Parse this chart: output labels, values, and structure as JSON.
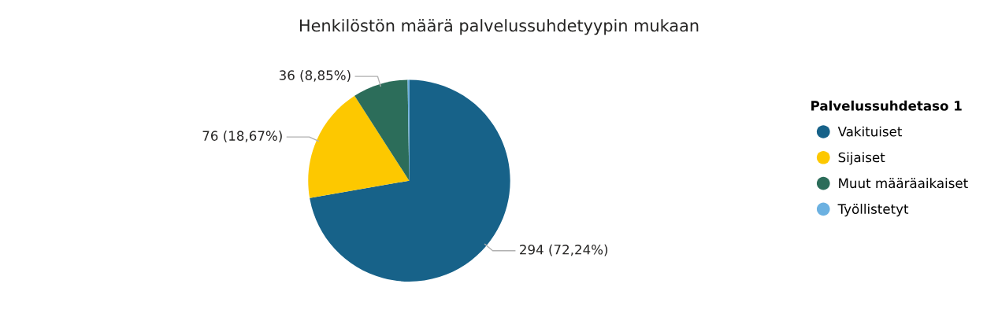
{
  "chart_data": {
    "type": "pie",
    "title": "Henkilöstön määrä palvelussuhdetyypin mukaan",
    "legend_title": "Palvelussuhdetaso 1",
    "categories": [
      "Vakituiset",
      "Sijaiset",
      "Muut määräaikaiset",
      "Työllistetyt"
    ],
    "values": [
      294,
      76,
      36,
      1
    ],
    "colors": [
      "#176289",
      "#fdc800",
      "#2c6d5a",
      "#6cb1e1"
    ],
    "value_labels": [
      "294 (72,24%)",
      "76 (18,67%)",
      "36 (8,85%)",
      null
    ],
    "legend": "right"
  }
}
